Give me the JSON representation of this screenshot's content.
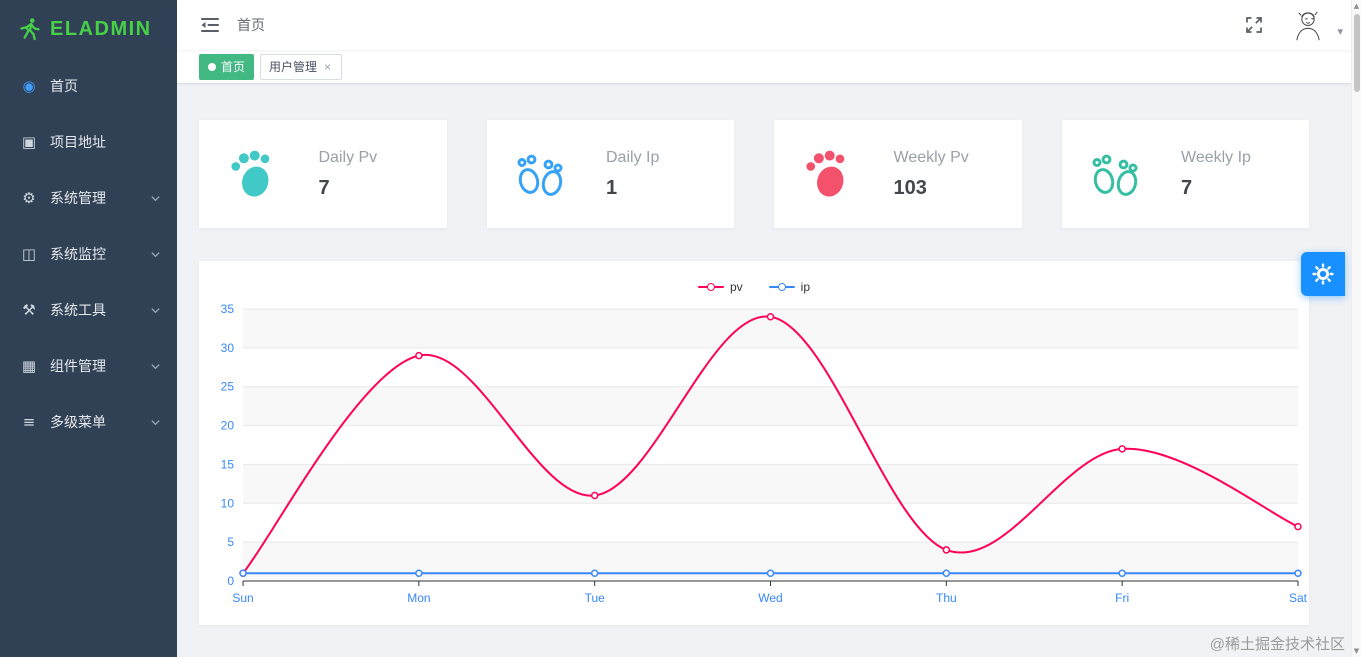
{
  "colors": {
    "logo_green": "#47d147",
    "home_icon_blue": "#409eff",
    "active_tab_green": "#42b983",
    "fab_blue": "#1890ff"
  },
  "sidebar": {
    "logo_text": "ELADMIN",
    "items": [
      {
        "label": "首页",
        "icon": "home-icon",
        "expandable": false
      },
      {
        "label": "项目地址",
        "icon": "project-link-icon",
        "expandable": false
      },
      {
        "label": "系统管理",
        "icon": "gear-icon",
        "expandable": true
      },
      {
        "label": "系统监控",
        "icon": "monitor-icon",
        "expandable": true
      },
      {
        "label": "系统工具",
        "icon": "tools-icon",
        "expandable": true
      },
      {
        "label": "组件管理",
        "icon": "components-icon",
        "expandable": true
      },
      {
        "label": "多级菜单",
        "icon": "multi-level-menu-icon",
        "expandable": true
      }
    ]
  },
  "header": {
    "breadcrumb": "首页"
  },
  "tabs": [
    {
      "label": "首页",
      "active": true,
      "closable": false
    },
    {
      "label": "用户管理",
      "active": false,
      "closable": true
    }
  ],
  "cards": [
    {
      "label": "Daily Pv",
      "value": "7",
      "icon": "footprint-icon",
      "color": "#40c9c6"
    },
    {
      "label": "Daily Ip",
      "value": "1",
      "icon": "footprints-pair-icon",
      "color": "#36a3f7"
    },
    {
      "label": "Weekly Pv",
      "value": "103",
      "icon": "footprint-icon",
      "color": "#f4516c"
    },
    {
      "label": "Weekly Ip",
      "value": "7",
      "icon": "footprints-pair-icon",
      "color": "#34bfa3"
    }
  ],
  "chart_data": {
    "type": "line",
    "x": [
      "Sun",
      "Mon",
      "Tue",
      "Wed",
      "Thu",
      "Fri",
      "Sat"
    ],
    "series": [
      {
        "name": "pv",
        "color": "#FF005A",
        "values": [
          1,
          29,
          11,
          34,
          4,
          17,
          7
        ]
      },
      {
        "name": "ip",
        "color": "#3888fa",
        "values": [
          1,
          1,
          1,
          1,
          1,
          1,
          1
        ]
      }
    ],
    "ylim": [
      0,
      35
    ],
    "ytick_step": 5,
    "smooth": true,
    "legend_position": "top-center",
    "grid": "horizontal",
    "axis_label_color": "#3888fa"
  },
  "watermark": "@稀土掘金技术社区"
}
